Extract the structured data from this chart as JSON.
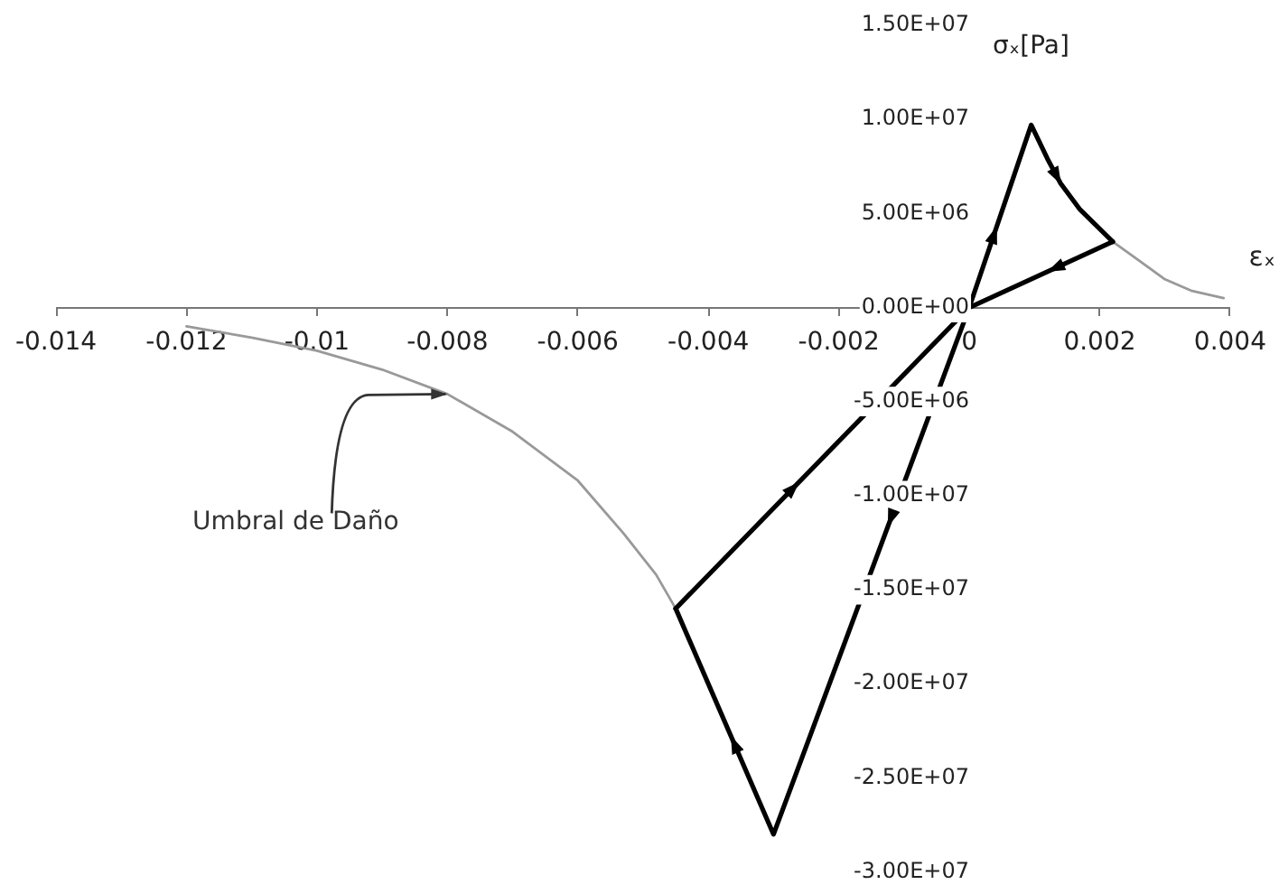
{
  "chart_data": {
    "type": "line",
    "xlabel": "εₓ",
    "ylabel": "σₓ[Pa]",
    "annotations": [
      {
        "text": "Umbral de Daño",
        "x": -0.008,
        "y": -4600000
      }
    ],
    "series": [
      {
        "color": "#000000",
        "x": [
          -0.0045,
          0,
          0.00095,
          0.0012,
          0.0014,
          0.0017,
          0.0022
        ],
        "values": [
          -16000000,
          0,
          9700000,
          7900000,
          6600000,
          5200000,
          3500000
        ]
      },
      {
        "color": "#000000",
        "x": [
          0.0022,
          0,
          -0.003,
          -0.0045
        ],
        "values": [
          3500000,
          0,
          -28000000,
          -16000000
        ]
      },
      {
        "color": "#999999",
        "x": [
          -0.012,
          -0.011,
          -0.01,
          -0.009,
          -0.008,
          -0.007,
          -0.006,
          -0.0053,
          -0.0048,
          -0.0045
        ],
        "values": [
          -1000000,
          -1600000,
          -2300000,
          -3300000,
          -4600000,
          -6600000,
          -9200000,
          -12000000,
          -14200000,
          -16000000
        ]
      },
      {
        "color": "#999999",
        "x": [
          0.0022,
          0.0026,
          0.003,
          0.0034,
          0.0039
        ],
        "values": [
          3500000,
          2500000,
          1500000,
          900000,
          500000
        ]
      }
    ],
    "xlim": [
      -0.014,
      0.004
    ],
    "ylim": [
      -30000000,
      15000000
    ],
    "xticks": [
      -0.014,
      -0.012,
      -0.01,
      -0.008,
      -0.006,
      -0.004,
      -0.002,
      0,
      0.002,
      0.004
    ],
    "yticks": [
      {
        "value": 15000000,
        "label": "1.50E+07"
      },
      {
        "value": 10000000,
        "label": "1.00E+07"
      },
      {
        "value": 5000000,
        "label": "5.00E+06"
      },
      {
        "value": 0,
        "label": "0.00E+00"
      },
      {
        "value": -5000000,
        "label": "-5.00E+06"
      },
      {
        "value": -10000000,
        "label": "-1.00E+07"
      },
      {
        "value": -15000000,
        "label": "-1.50E+07"
      },
      {
        "value": -20000000,
        "label": "-2.00E+07"
      },
      {
        "value": -25000000,
        "label": "-2.50E+07"
      },
      {
        "value": -30000000,
        "label": "-3.00E+07"
      }
    ]
  }
}
